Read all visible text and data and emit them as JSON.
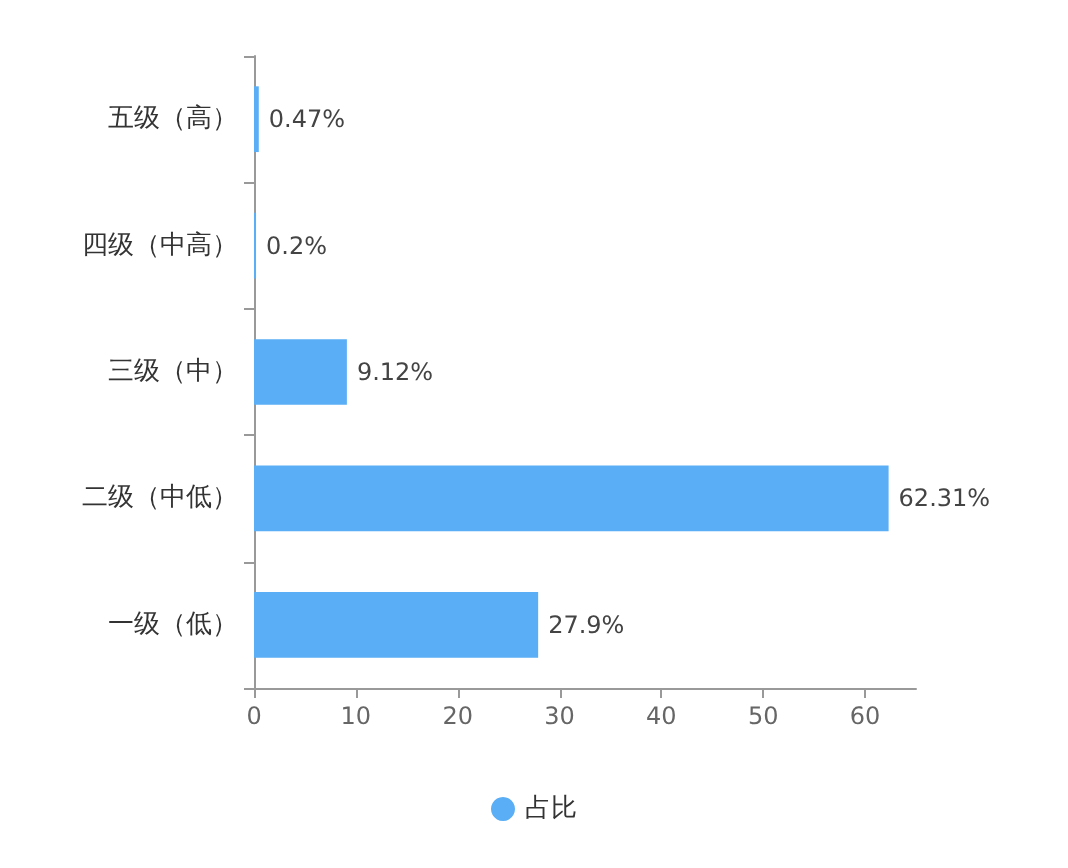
{
  "chart_data": {
    "type": "bar",
    "orientation": "horizontal",
    "categories": [
      "五级（高）",
      "四级（中高）",
      "三级（中）",
      "二级（中低）",
      "一级（低）"
    ],
    "series": [
      {
        "name": "占比",
        "color": "#5aaef5",
        "values": [
          0.47,
          0.2,
          9.12,
          62.31,
          27.9
        ],
        "value_labels": [
          "0.47%",
          "0.2%",
          "9.12%",
          "62.31%",
          "27.9%"
        ]
      }
    ],
    "xlim": [
      0,
      65
    ],
    "xticks": [
      0,
      10,
      20,
      30,
      40,
      50,
      60
    ],
    "grid": false,
    "legend": "bottom"
  }
}
